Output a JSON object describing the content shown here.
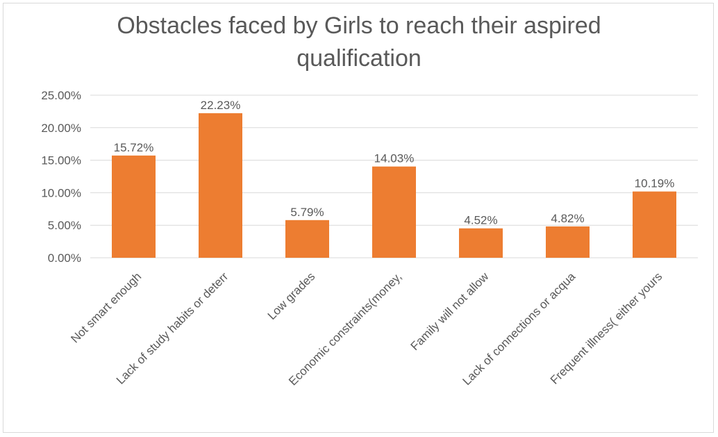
{
  "chart_data": {
    "type": "bar",
    "title_line1": "Obstacles faced by Girls to reach their aspired",
    "title_line2": "qualification",
    "categories": [
      "Not smart enough",
      "Lack of study habits or deterr",
      "Low grades",
      "Economic constraints(money,",
      "Family will not allow",
      "Lack of connections or acqua",
      "Frequent illness( either yours"
    ],
    "values": [
      15.72,
      22.23,
      5.79,
      14.03,
      4.52,
      4.82,
      10.19
    ],
    "data_labels": [
      "15.72%",
      "22.23%",
      "5.79%",
      "14.03%",
      "4.52%",
      "4.82%",
      "10.19%"
    ],
    "y_ticks": [
      0,
      5,
      10,
      15,
      20,
      25
    ],
    "y_tick_labels": [
      "0.00%",
      "5.00%",
      "10.00%",
      "15.00%",
      "20.00%",
      "25.00%"
    ],
    "ylim": [
      0,
      25
    ],
    "xlabel": "",
    "ylabel": "",
    "grid": true,
    "legend": "none",
    "bar_color": "#ed7d31"
  }
}
